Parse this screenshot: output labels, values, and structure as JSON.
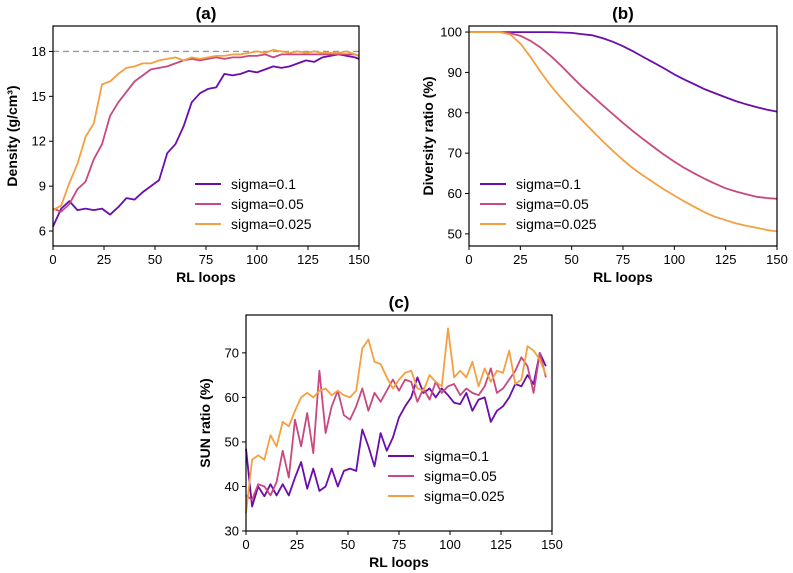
{
  "colors": {
    "s1": "#6a0dad",
    "s2": "#c8487f",
    "s3": "#f5a040",
    "ref": "#999999"
  },
  "chart_data": [
    {
      "id": "a",
      "type": "line",
      "title": "(a)",
      "xlabel": "RL loops",
      "ylabel": "Density (g/cm³)",
      "xlim": [
        0,
        150
      ],
      "ylim": [
        5,
        19.7
      ],
      "xticks": [
        "0",
        "25",
        "50",
        "75",
        "100",
        "125",
        "150"
      ],
      "yticks": [
        "6",
        "9",
        "12",
        "15",
        "18"
      ],
      "reference_line": 18,
      "legend_position": "lower-right",
      "x": [
        0,
        4,
        8,
        12,
        16,
        20,
        24,
        28,
        32,
        36,
        40,
        44,
        48,
        52,
        56,
        60,
        64,
        68,
        72,
        76,
        80,
        84,
        88,
        92,
        96,
        100,
        104,
        108,
        112,
        116,
        120,
        124,
        128,
        132,
        136,
        140,
        144,
        148,
        150
      ],
      "series": [
        {
          "name": "sigma=0.1",
          "values": [
            6.3,
            7.5,
            8.0,
            7.4,
            7.5,
            7.4,
            7.5,
            7.1,
            7.6,
            8.2,
            8.1,
            8.6,
            9.0,
            9.4,
            11.2,
            11.8,
            13.0,
            14.6,
            15.2,
            15.5,
            15.6,
            16.5,
            16.4,
            16.5,
            16.7,
            16.6,
            16.8,
            17.0,
            16.9,
            17.0,
            17.2,
            17.4,
            17.3,
            17.6,
            17.7,
            17.8,
            17.7,
            17.6,
            17.5
          ]
        },
        {
          "name": "sigma=0.05",
          "values": [
            7.5,
            7.3,
            7.8,
            8.8,
            9.3,
            10.8,
            11.8,
            13.7,
            14.6,
            15.3,
            16.0,
            16.4,
            16.8,
            16.9,
            17.0,
            17.2,
            17.4,
            17.5,
            17.4,
            17.5,
            17.6,
            17.5,
            17.6,
            17.6,
            17.7,
            17.7,
            17.8,
            17.6,
            17.8,
            17.8,
            17.8,
            17.8,
            17.8,
            17.8,
            17.8,
            17.8,
            17.8,
            17.8,
            17.7
          ]
        },
        {
          "name": "sigma=0.025",
          "values": [
            7.4,
            7.7,
            9.2,
            10.5,
            12.3,
            13.2,
            15.8,
            16.0,
            16.5,
            16.9,
            17.0,
            17.2,
            17.2,
            17.4,
            17.5,
            17.6,
            17.4,
            17.6,
            17.5,
            17.6,
            17.7,
            17.7,
            17.8,
            17.8,
            17.9,
            18.0,
            17.9,
            18.1,
            18.0,
            17.9,
            18.0,
            17.9,
            18.0,
            17.9,
            17.9,
            17.9,
            18.0,
            17.8,
            17.7
          ]
        }
      ]
    },
    {
      "id": "b",
      "type": "line",
      "title": "(b)",
      "xlabel": "RL loops",
      "ylabel": "Diversity ratio (%)",
      "xlim": [
        0,
        150
      ],
      "ylim": [
        47,
        101.5
      ],
      "xticks": [
        "0",
        "25",
        "50",
        "75",
        "100",
        "125",
        "150"
      ],
      "yticks": [
        "50",
        "60",
        "70",
        "80",
        "90",
        "100"
      ],
      "legend_position": "lower-left",
      "x": [
        0,
        5,
        10,
        15,
        20,
        25,
        30,
        35,
        40,
        45,
        50,
        55,
        60,
        65,
        70,
        75,
        80,
        85,
        90,
        95,
        100,
        105,
        110,
        115,
        120,
        125,
        130,
        135,
        140,
        145,
        150
      ],
      "series": [
        {
          "name": "sigma=0.1",
          "values": [
            100,
            100,
            100,
            100,
            100,
            100,
            100,
            100,
            100,
            99.9,
            99.8,
            99.5,
            99.2,
            98.5,
            97.6,
            96.5,
            95.2,
            93.8,
            92.4,
            91.0,
            89.5,
            88.2,
            87.0,
            85.8,
            84.8,
            83.8,
            82.9,
            82.1,
            81.4,
            80.8,
            80.3
          ]
        },
        {
          "name": "sigma=0.05",
          "values": [
            100,
            100,
            100,
            100,
            99.7,
            99.1,
            97.8,
            96.1,
            94.0,
            91.6,
            89.0,
            86.5,
            84.2,
            81.9,
            79.7,
            77.5,
            75.4,
            73.4,
            71.5,
            69.6,
            67.9,
            66.3,
            64.9,
            63.6,
            62.4,
            61.3,
            60.5,
            59.8,
            59.2,
            58.9,
            58.7
          ]
        },
        {
          "name": "sigma=0.025",
          "values": [
            100,
            100,
            100,
            100,
            99.4,
            97.2,
            93.8,
            90.0,
            86.6,
            83.6,
            80.8,
            78.2,
            75.6,
            73.0,
            70.6,
            68.3,
            66.2,
            64.4,
            62.7,
            61.0,
            59.5,
            58.0,
            56.6,
            55.3,
            54.2,
            53.4,
            52.6,
            52.0,
            51.5,
            51.0,
            50.6
          ]
        }
      ]
    },
    {
      "id": "c",
      "type": "line",
      "title": "(c)",
      "xlabel": "RL loops",
      "ylabel": "SUN ratio (%)",
      "xlim": [
        0,
        150
      ],
      "ylim": [
        30,
        78.5
      ],
      "xticks": [
        "0",
        "25",
        "50",
        "75",
        "100",
        "125",
        "150"
      ],
      "yticks": [
        "30",
        "40",
        "50",
        "60",
        "70"
      ],
      "legend_position": "lower-right",
      "x": [
        0,
        3,
        6,
        9,
        12,
        15,
        18,
        21,
        24,
        27,
        30,
        33,
        36,
        39,
        42,
        45,
        48,
        51,
        54,
        57,
        60,
        63,
        66,
        69,
        72,
        75,
        78,
        81,
        84,
        87,
        90,
        93,
        96,
        99,
        102,
        105,
        108,
        111,
        114,
        117,
        120,
        123,
        126,
        129,
        132,
        135,
        138,
        141,
        144,
        147
      ],
      "series": [
        {
          "name": "sigma=0.1",
          "values": [
            48.5,
            35.5,
            40.0,
            37.8,
            40.5,
            38.0,
            40.5,
            38.0,
            42.0,
            45.5,
            39.5,
            44.0,
            39.0,
            40.0,
            44.0,
            40.0,
            43.5,
            44.0,
            43.5,
            52.8,
            49.0,
            44.5,
            52.0,
            48.0,
            51.0,
            55.5,
            58.0,
            60.0,
            64.5,
            61.0,
            62.0,
            60.0,
            62.0,
            60.5,
            58.8,
            58.5,
            61.0,
            57.0,
            59.5,
            60.0,
            54.5,
            57.0,
            58.0,
            60.0,
            63.0,
            62.5,
            65.0,
            63.0,
            70.0,
            67.0
          ]
        },
        {
          "name": "sigma=0.05",
          "values": [
            38.0,
            37.0,
            40.5,
            40.0,
            38.0,
            41.0,
            48.0,
            42.0,
            55.0,
            49.0,
            56.5,
            47.5,
            66.0,
            52.0,
            58.0,
            61.5,
            56.0,
            55.0,
            58.0,
            62.0,
            57.0,
            61.0,
            59.0,
            61.5,
            64.0,
            61.5,
            64.0,
            63.5,
            59.0,
            62.0,
            59.5,
            63.5,
            61.0,
            62.5,
            63.0,
            60.5,
            62.0,
            61.0,
            60.5,
            62.5,
            66.5,
            61.0,
            62.0,
            64.0,
            66.0,
            69.0,
            67.0,
            61.0,
            70.0,
            64.5
          ]
        },
        {
          "name": "sigma=0.025",
          "values": [
            34.0,
            46.0,
            47.0,
            46.0,
            51.5,
            49.0,
            54.5,
            53.5,
            57.0,
            60.0,
            61.0,
            60.0,
            61.5,
            62.0,
            60.5,
            61.5,
            60.5,
            60.0,
            61.5,
            71.0,
            73.0,
            68.0,
            67.5,
            64.5,
            62.0,
            64.0,
            65.5,
            66.0,
            62.0,
            61.5,
            65.0,
            63.5,
            62.5,
            75.5,
            64.5,
            66.0,
            64.5,
            68.0,
            62.5,
            66.5,
            63.5,
            66.0,
            65.5,
            70.5,
            63.0,
            64.0,
            71.5,
            70.5,
            68.5,
            65.0
          ]
        }
      ]
    }
  ]
}
